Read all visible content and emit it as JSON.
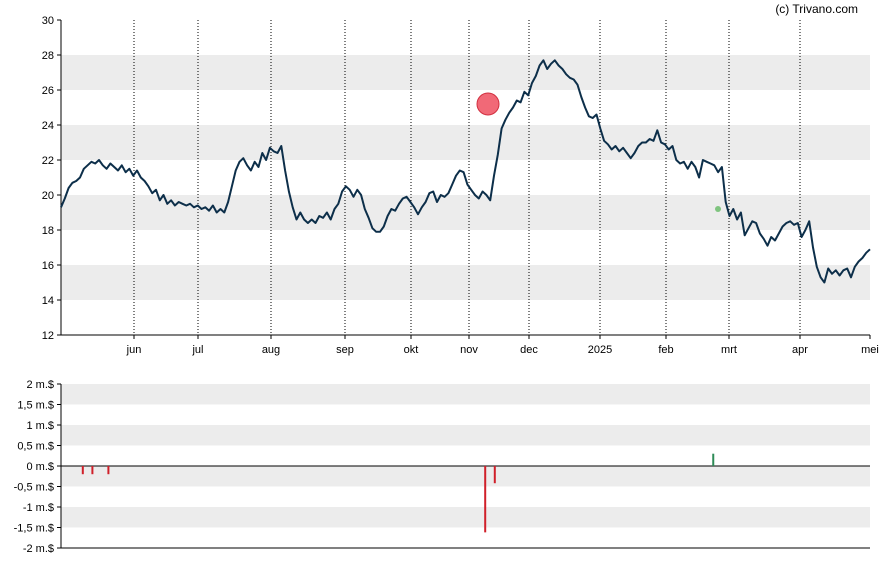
{
  "credit": "(c) Trivano.com",
  "colors": {
    "price_line": "#0d2f4a",
    "band": "#ececec",
    "buy_bar": "#2e8b57",
    "sell_bar": "#d0202a",
    "highlight_marker": "#ef4f5f",
    "small_marker": "#7fc47f",
    "vgrid": "#000000",
    "axis": "#000000"
  },
  "chart_data": [
    {
      "type": "line",
      "name": "price",
      "x_tick_labels": [
        "jun",
        "jul",
        "aug",
        "sep",
        "okt",
        "nov",
        "dec",
        "2025",
        "feb",
        "mrt",
        "apr",
        "mei"
      ],
      "y_tick_labels": [
        "12",
        "14",
        "16",
        "18",
        "20",
        "22",
        "24",
        "26",
        "28",
        "30"
      ],
      "ylim": [
        12,
        30
      ],
      "grid": "alternating horizontal bands, dotted vertical lines at month ticks",
      "series": [
        {
          "values": [
            19.3,
            19.8,
            20.4,
            20.7,
            20.8,
            21.0,
            21.5,
            21.7,
            21.9,
            21.8,
            22.0,
            21.7,
            21.5,
            21.8,
            21.6,
            21.4,
            21.7,
            21.3,
            21.5,
            21.1,
            21.4,
            21.0,
            20.8,
            20.5,
            20.1,
            20.3,
            19.7,
            20.0,
            19.5,
            19.7,
            19.4,
            19.6,
            19.5,
            19.4,
            19.5,
            19.3,
            19.4,
            19.2,
            19.3,
            19.1,
            19.4,
            19.0,
            19.2,
            19.0,
            19.6,
            20.5,
            21.4,
            21.9,
            22.1,
            21.7,
            21.4,
            21.9,
            21.6,
            22.4,
            22.0,
            22.7,
            22.5,
            22.4,
            22.8,
            21.4,
            20.2,
            19.3,
            18.6,
            19.0,
            18.6,
            18.4,
            18.6,
            18.4,
            18.8,
            18.7,
            19.0,
            18.6,
            19.2,
            19.5,
            20.2,
            20.5,
            20.3,
            19.9,
            20.3,
            20.0,
            19.2,
            18.7,
            18.1,
            17.9,
            17.9,
            18.2,
            18.8,
            19.2,
            19.1,
            19.5,
            19.8,
            19.9,
            19.6,
            19.3,
            18.9,
            19.3,
            19.6,
            20.1,
            20.2,
            19.6,
            20.0,
            19.9,
            20.1,
            20.6,
            21.1,
            21.4,
            21.3,
            20.6,
            20.3,
            20.0,
            19.8,
            20.2,
            20.0,
            19.7,
            21.1,
            22.3,
            23.8,
            24.3,
            24.7,
            25.0,
            25.4,
            25.3,
            25.9,
            25.7,
            26.4,
            26.8,
            27.4,
            27.7,
            27.2,
            27.5,
            27.7,
            27.4,
            27.2,
            26.9,
            26.7,
            26.6,
            26.3,
            25.6,
            25.0,
            24.5,
            24.4,
            24.6,
            23.8,
            23.1,
            22.9,
            22.6,
            22.8,
            22.5,
            22.7,
            22.4,
            22.1,
            22.4,
            22.8,
            23.0,
            23.0,
            23.2,
            23.1,
            23.7,
            23.0,
            22.9,
            22.6,
            22.8,
            22.0,
            21.8,
            21.9,
            21.5,
            21.9,
            21.6,
            21.0,
            22.0,
            21.9,
            21.8,
            21.7,
            21.3,
            21.6,
            19.6,
            18.8,
            19.2,
            18.6,
            19.0,
            17.7,
            18.1,
            18.5,
            18.4,
            17.8,
            17.5,
            17.1,
            17.6,
            17.4,
            17.8,
            18.2,
            18.4,
            18.5,
            18.3,
            18.4,
            17.6,
            18.0,
            18.5,
            17.0,
            15.9,
            15.3,
            15.0,
            15.8,
            15.5,
            15.7,
            15.4,
            15.7,
            15.8,
            15.3,
            15.9,
            16.2,
            16.4,
            16.7,
            16.9
          ]
        }
      ],
      "markers": [
        {
          "label": "buy-signal",
          "value": 25.2
        },
        {
          "label": "sell-signal",
          "value": 19.2
        }
      ]
    },
    {
      "type": "bar",
      "name": "insider-transactions",
      "y_tick_labels": [
        "2 m.$",
        "1,5 m.$",
        "1 m.$",
        "0,5 m.$",
        "0 m.$",
        "-0,5 m.$",
        "-1 m.$",
        "-1,5 m.$",
        "-2 m.$"
      ],
      "ylim": [
        -2,
        2
      ],
      "x_tick_labels": [
        "jun",
        "jul",
        "aug",
        "sep",
        "okt",
        "nov",
        "dec",
        "2025",
        "feb",
        "mrt",
        "apr",
        "mei"
      ],
      "bars": [
        {
          "month_index": -0.8,
          "value": -0.2
        },
        {
          "month_index": -0.65,
          "value": -0.2
        },
        {
          "month_index": -0.4,
          "value": -0.2
        },
        {
          "month_index": 5.27,
          "value": -1.62
        },
        {
          "month_index": 5.43,
          "value": -0.42
        },
        {
          "month_index": 8.75,
          "value": 0.3
        }
      ]
    }
  ]
}
